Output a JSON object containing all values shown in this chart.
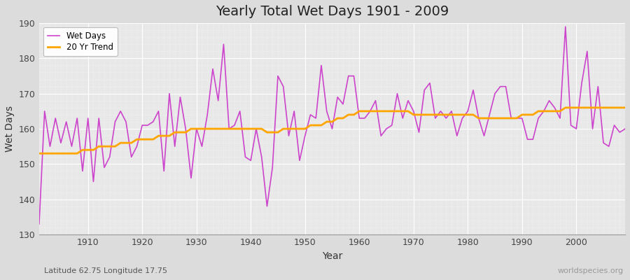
{
  "title": "Yearly Total Wet Days 1901 - 2009",
  "xlabel": "Year",
  "ylabel": "Wet Days",
  "subtitle_left": "Latitude 62.75 Longitude 17.75",
  "subtitle_right": "worldspecies.org",
  "ylim": [
    130,
    190
  ],
  "yticks": [
    130,
    140,
    150,
    160,
    170,
    180,
    190
  ],
  "xticks": [
    1910,
    1920,
    1930,
    1940,
    1950,
    1960,
    1970,
    1980,
    1990,
    2000
  ],
  "wet_days_color": "#CC44CC",
  "trend_color": "#FFA500",
  "fig_bg_color": "#DCDCDC",
  "plot_bg_color": "#E8E8E8",
  "years": [
    1901,
    1902,
    1903,
    1904,
    1905,
    1906,
    1907,
    1908,
    1909,
    1910,
    1911,
    1912,
    1913,
    1914,
    1915,
    1916,
    1917,
    1918,
    1919,
    1920,
    1921,
    1922,
    1923,
    1924,
    1925,
    1926,
    1927,
    1928,
    1929,
    1930,
    1931,
    1932,
    1933,
    1934,
    1935,
    1936,
    1937,
    1938,
    1939,
    1940,
    1941,
    1942,
    1943,
    1944,
    1945,
    1946,
    1947,
    1948,
    1949,
    1950,
    1951,
    1952,
    1953,
    1954,
    1955,
    1956,
    1957,
    1958,
    1959,
    1960,
    1961,
    1962,
    1963,
    1964,
    1965,
    1966,
    1967,
    1968,
    1969,
    1970,
    1971,
    1972,
    1973,
    1974,
    1975,
    1976,
    1977,
    1978,
    1979,
    1980,
    1981,
    1982,
    1983,
    1984,
    1985,
    1986,
    1987,
    1988,
    1989,
    1990,
    1991,
    1992,
    1993,
    1994,
    1995,
    1996,
    1997,
    1998,
    1999,
    2000,
    2001,
    2002,
    2003,
    2004,
    2005,
    2006,
    2007,
    2008,
    2009
  ],
  "wet_days": [
    133,
    165,
    155,
    163,
    156,
    162,
    155,
    163,
    148,
    163,
    145,
    163,
    149,
    152,
    162,
    165,
    162,
    152,
    155,
    161,
    161,
    162,
    165,
    148,
    170,
    155,
    169,
    160,
    146,
    160,
    155,
    164,
    177,
    168,
    184,
    160,
    161,
    165,
    152,
    151,
    160,
    152,
    138,
    149,
    175,
    172,
    158,
    165,
    151,
    158,
    164,
    163,
    178,
    165,
    160,
    169,
    167,
    175,
    175,
    163,
    163,
    165,
    168,
    158,
    160,
    161,
    170,
    163,
    168,
    165,
    159,
    171,
    173,
    163,
    165,
    163,
    165,
    158,
    163,
    165,
    171,
    163,
    158,
    164,
    170,
    172,
    172,
    163,
    163,
    163,
    157,
    157,
    163,
    165,
    168,
    166,
    163,
    189,
    161,
    160,
    173,
    182,
    160,
    172,
    156,
    155,
    161,
    159,
    160
  ],
  "trend": [
    153,
    153,
    153,
    153,
    153,
    153,
    153,
    153,
    154,
    154,
    154,
    155,
    155,
    155,
    155,
    156,
    156,
    156,
    157,
    157,
    157,
    157,
    158,
    158,
    158,
    159,
    159,
    159,
    160,
    160,
    160,
    160,
    160,
    160,
    160,
    160,
    160,
    160,
    160,
    160,
    160,
    160,
    159,
    159,
    159,
    160,
    160,
    160,
    160,
    160,
    161,
    161,
    161,
    162,
    162,
    163,
    163,
    164,
    164,
    165,
    165,
    165,
    165,
    165,
    165,
    165,
    165,
    165,
    165,
    164,
    164,
    164,
    164,
    164,
    164,
    164,
    164,
    164,
    164,
    164,
    164,
    163,
    163,
    163,
    163,
    163,
    163,
    163,
    163,
    164,
    164,
    164,
    165,
    165,
    165,
    165,
    165,
    166,
    166,
    166,
    166,
    166,
    166,
    166,
    166,
    166,
    166,
    166,
    166
  ]
}
